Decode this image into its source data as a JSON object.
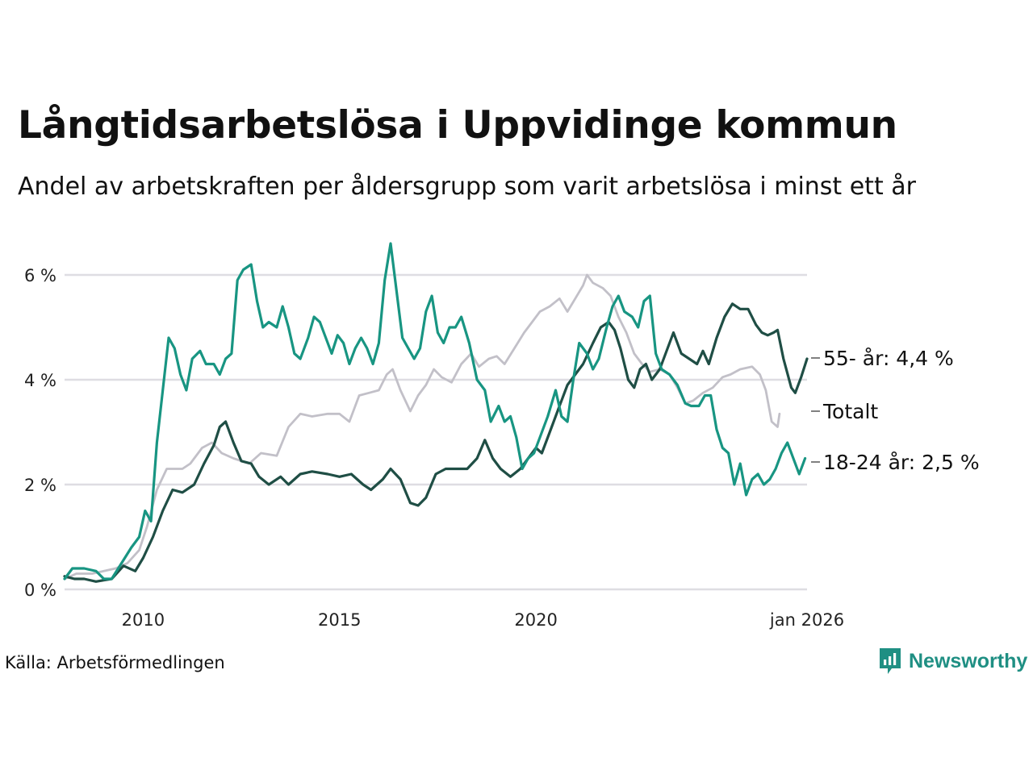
{
  "title": "Långtidsarbetslösa i Uppvidinge kommun",
  "subtitle": "Andel av arbetskraften per åldersgrupp som varit arbetslösa i minst ett år",
  "source": "Källa: Arbetsförmedlingen",
  "brand": {
    "name": "Newsworthy",
    "icon": "newsworthy-logo-icon",
    "color": "#1f8f83"
  },
  "chart_data": {
    "type": "line",
    "title": "Långtidsarbetslösa i Uppvidinge kommun",
    "xlabel": "",
    "ylabel": "",
    "x_unit": "year",
    "xlim": [
      2008.0,
      2026.0
    ],
    "ylim": [
      0,
      6.8
    ],
    "grid": true,
    "y_ticks": [
      {
        "value": 0,
        "label": "0 %"
      },
      {
        "value": 2,
        "label": "2 %"
      },
      {
        "value": 4,
        "label": "4 %"
      },
      {
        "value": 6,
        "label": "6 %"
      }
    ],
    "x_ticks": [
      {
        "value": 2010,
        "label": "2010"
      },
      {
        "value": 2015,
        "label": "2015"
      },
      {
        "value": 2020,
        "label": "2020"
      },
      {
        "value": 2026,
        "label": "jan 2026"
      }
    ],
    "series": [
      {
        "name": "Totalt",
        "end_label": "Totalt",
        "color": "#c2c0c8",
        "points": [
          [
            2008.0,
            0.2
          ],
          [
            2008.3,
            0.3
          ],
          [
            2008.7,
            0.3
          ],
          [
            2009.0,
            0.35
          ],
          [
            2009.3,
            0.4
          ],
          [
            2009.6,
            0.5
          ],
          [
            2009.9,
            0.75
          ],
          [
            2010.1,
            1.2
          ],
          [
            2010.35,
            1.9
          ],
          [
            2010.6,
            2.3
          ],
          [
            2011.0,
            2.3
          ],
          [
            2011.2,
            2.4
          ],
          [
            2011.5,
            2.7
          ],
          [
            2011.75,
            2.8
          ],
          [
            2012.0,
            2.6
          ],
          [
            2012.3,
            2.5
          ],
          [
            2012.7,
            2.4
          ],
          [
            2013.0,
            2.6
          ],
          [
            2013.4,
            2.55
          ],
          [
            2013.7,
            3.1
          ],
          [
            2014.0,
            3.35
          ],
          [
            2014.3,
            3.3
          ],
          [
            2014.7,
            3.35
          ],
          [
            2015.0,
            3.35
          ],
          [
            2015.25,
            3.2
          ],
          [
            2015.5,
            3.7
          ],
          [
            2015.75,
            3.75
          ],
          [
            2016.0,
            3.8
          ],
          [
            2016.2,
            4.1
          ],
          [
            2016.35,
            4.2
          ],
          [
            2016.55,
            3.8
          ],
          [
            2016.8,
            3.4
          ],
          [
            2017.0,
            3.7
          ],
          [
            2017.2,
            3.9
          ],
          [
            2017.4,
            4.2
          ],
          [
            2017.6,
            4.05
          ],
          [
            2017.85,
            3.95
          ],
          [
            2018.1,
            4.3
          ],
          [
            2018.35,
            4.5
          ],
          [
            2018.55,
            4.25
          ],
          [
            2018.8,
            4.4
          ],
          [
            2019.0,
            4.45
          ],
          [
            2019.2,
            4.3
          ],
          [
            2019.45,
            4.6
          ],
          [
            2019.7,
            4.9
          ],
          [
            2019.9,
            5.1
          ],
          [
            2020.1,
            5.3
          ],
          [
            2020.35,
            5.4
          ],
          [
            2020.6,
            5.55
          ],
          [
            2020.8,
            5.3
          ],
          [
            2021.0,
            5.55
          ],
          [
            2021.2,
            5.8
          ],
          [
            2021.3,
            6.0
          ],
          [
            2021.45,
            5.85
          ],
          [
            2021.7,
            5.75
          ],
          [
            2021.9,
            5.6
          ],
          [
            2022.1,
            5.2
          ],
          [
            2022.3,
            4.9
          ],
          [
            2022.5,
            4.5
          ],
          [
            2022.7,
            4.3
          ],
          [
            2022.9,
            4.15
          ],
          [
            2023.15,
            4.2
          ],
          [
            2023.4,
            4.1
          ],
          [
            2023.6,
            3.85
          ],
          [
            2023.8,
            3.55
          ],
          [
            2024.0,
            3.6
          ],
          [
            2024.25,
            3.75
          ],
          [
            2024.5,
            3.85
          ],
          [
            2024.75,
            4.05
          ],
          [
            2024.95,
            4.1
          ],
          [
            2025.2,
            4.2
          ],
          [
            2025.5,
            4.25
          ],
          [
            2025.7,
            4.1
          ],
          [
            2025.85,
            3.8
          ],
          [
            2026.0,
            3.2
          ],
          [
            2026.15,
            3.1
          ],
          [
            2026.2,
            3.35
          ]
        ]
      },
      {
        "name": "55- år",
        "end_label": "55- år: 4,4 %",
        "color": "#1f4e45",
        "points": [
          [
            2008.0,
            0.25
          ],
          [
            2008.25,
            0.2
          ],
          [
            2008.5,
            0.2
          ],
          [
            2008.8,
            0.15
          ],
          [
            2009.2,
            0.2
          ],
          [
            2009.5,
            0.45
          ],
          [
            2009.8,
            0.35
          ],
          [
            2010.0,
            0.6
          ],
          [
            2010.25,
            1.0
          ],
          [
            2010.5,
            1.5
          ],
          [
            2010.75,
            1.9
          ],
          [
            2011.0,
            1.85
          ],
          [
            2011.3,
            2.0
          ],
          [
            2011.55,
            2.4
          ],
          [
            2011.8,
            2.75
          ],
          [
            2011.95,
            3.1
          ],
          [
            2012.1,
            3.2
          ],
          [
            2012.3,
            2.8
          ],
          [
            2012.5,
            2.45
          ],
          [
            2012.75,
            2.4
          ],
          [
            2012.95,
            2.15
          ],
          [
            2013.2,
            2.0
          ],
          [
            2013.5,
            2.15
          ],
          [
            2013.7,
            2.0
          ],
          [
            2014.0,
            2.2
          ],
          [
            2014.3,
            2.25
          ],
          [
            2014.7,
            2.2
          ],
          [
            2015.0,
            2.15
          ],
          [
            2015.3,
            2.2
          ],
          [
            2015.6,
            2.0
          ],
          [
            2015.8,
            1.9
          ],
          [
            2016.1,
            2.1
          ],
          [
            2016.3,
            2.3
          ],
          [
            2016.55,
            2.1
          ],
          [
            2016.8,
            1.65
          ],
          [
            2017.0,
            1.6
          ],
          [
            2017.2,
            1.75
          ],
          [
            2017.45,
            2.2
          ],
          [
            2017.7,
            2.3
          ],
          [
            2018.0,
            2.3
          ],
          [
            2018.25,
            2.3
          ],
          [
            2018.5,
            2.5
          ],
          [
            2018.7,
            2.85
          ],
          [
            2018.9,
            2.5
          ],
          [
            2019.1,
            2.3
          ],
          [
            2019.35,
            2.15
          ],
          [
            2019.6,
            2.3
          ],
          [
            2019.85,
            2.55
          ],
          [
            2020.0,
            2.7
          ],
          [
            2020.15,
            2.6
          ],
          [
            2020.35,
            3.0
          ],
          [
            2020.6,
            3.5
          ],
          [
            2020.8,
            3.9
          ],
          [
            2021.0,
            4.1
          ],
          [
            2021.2,
            4.3
          ],
          [
            2021.45,
            4.7
          ],
          [
            2021.65,
            5.0
          ],
          [
            2021.85,
            5.1
          ],
          [
            2022.0,
            4.95
          ],
          [
            2022.15,
            4.6
          ],
          [
            2022.35,
            4.0
          ],
          [
            2022.5,
            3.85
          ],
          [
            2022.65,
            4.2
          ],
          [
            2022.8,
            4.3
          ],
          [
            2022.95,
            4.0
          ],
          [
            2023.15,
            4.2
          ],
          [
            2023.35,
            4.6
          ],
          [
            2023.5,
            4.9
          ],
          [
            2023.7,
            4.5
          ],
          [
            2023.9,
            4.4
          ],
          [
            2024.1,
            4.3
          ],
          [
            2024.25,
            4.55
          ],
          [
            2024.4,
            4.3
          ],
          [
            2024.6,
            4.8
          ],
          [
            2024.8,
            5.2
          ],
          [
            2025.0,
            5.45
          ],
          [
            2025.2,
            5.35
          ],
          [
            2025.4,
            5.35
          ],
          [
            2025.6,
            5.05
          ],
          [
            2025.75,
            4.9
          ],
          [
            2025.9,
            4.85
          ],
          [
            2026.05,
            4.9
          ],
          [
            2026.15,
            4.95
          ],
          [
            2026.3,
            4.4
          ],
          [
            2026.5,
            3.85
          ],
          [
            2026.6,
            3.75
          ],
          [
            2026.75,
            4.05
          ],
          [
            2026.9,
            4.4
          ]
        ]
      },
      {
        "name": "18-24 år",
        "end_label": "18-24 år: 2,5 %",
        "color": "#189582",
        "points": [
          [
            2008.0,
            0.2
          ],
          [
            2008.2,
            0.4
          ],
          [
            2008.5,
            0.4
          ],
          [
            2008.8,
            0.35
          ],
          [
            2009.0,
            0.2
          ],
          [
            2009.2,
            0.2
          ],
          [
            2009.45,
            0.5
          ],
          [
            2009.7,
            0.8
          ],
          [
            2009.9,
            1.0
          ],
          [
            2010.05,
            1.5
          ],
          [
            2010.2,
            1.3
          ],
          [
            2010.35,
            2.8
          ],
          [
            2010.5,
            3.8
          ],
          [
            2010.65,
            4.8
          ],
          [
            2010.8,
            4.6
          ],
          [
            2010.95,
            4.1
          ],
          [
            2011.1,
            3.8
          ],
          [
            2011.25,
            4.4
          ],
          [
            2011.45,
            4.55
          ],
          [
            2011.6,
            4.3
          ],
          [
            2011.8,
            4.3
          ],
          [
            2011.95,
            4.1
          ],
          [
            2012.1,
            4.4
          ],
          [
            2012.25,
            4.5
          ],
          [
            2012.4,
            5.9
          ],
          [
            2012.55,
            6.1
          ],
          [
            2012.75,
            6.2
          ],
          [
            2012.9,
            5.5
          ],
          [
            2013.05,
            5.0
          ],
          [
            2013.2,
            5.1
          ],
          [
            2013.4,
            5.0
          ],
          [
            2013.55,
            5.4
          ],
          [
            2013.7,
            5.0
          ],
          [
            2013.85,
            4.5
          ],
          [
            2014.0,
            4.4
          ],
          [
            2014.2,
            4.8
          ],
          [
            2014.35,
            5.2
          ],
          [
            2014.5,
            5.1
          ],
          [
            2014.65,
            4.8
          ],
          [
            2014.8,
            4.5
          ],
          [
            2014.95,
            4.85
          ],
          [
            2015.1,
            4.7
          ],
          [
            2015.25,
            4.3
          ],
          [
            2015.4,
            4.6
          ],
          [
            2015.55,
            4.8
          ],
          [
            2015.7,
            4.6
          ],
          [
            2015.85,
            4.3
          ],
          [
            2016.0,
            4.7
          ],
          [
            2016.15,
            5.9
          ],
          [
            2016.3,
            6.6
          ],
          [
            2016.45,
            5.7
          ],
          [
            2016.6,
            4.8
          ],
          [
            2016.75,
            4.6
          ],
          [
            2016.9,
            4.4
          ],
          [
            2017.05,
            4.6
          ],
          [
            2017.2,
            5.3
          ],
          [
            2017.35,
            5.6
          ],
          [
            2017.5,
            4.9
          ],
          [
            2017.65,
            4.7
          ],
          [
            2017.8,
            5.0
          ],
          [
            2017.95,
            5.0
          ],
          [
            2018.1,
            5.2
          ],
          [
            2018.3,
            4.7
          ],
          [
            2018.5,
            4.0
          ],
          [
            2018.7,
            3.8
          ],
          [
            2018.85,
            3.2
          ],
          [
            2019.05,
            3.5
          ],
          [
            2019.2,
            3.2
          ],
          [
            2019.35,
            3.3
          ],
          [
            2019.5,
            2.9
          ],
          [
            2019.65,
            2.3
          ],
          [
            2019.8,
            2.5
          ],
          [
            2019.95,
            2.6
          ],
          [
            2020.1,
            2.9
          ],
          [
            2020.3,
            3.3
          ],
          [
            2020.5,
            3.8
          ],
          [
            2020.65,
            3.3
          ],
          [
            2020.8,
            3.2
          ],
          [
            2020.95,
            4.0
          ],
          [
            2021.1,
            4.7
          ],
          [
            2021.3,
            4.5
          ],
          [
            2021.45,
            4.2
          ],
          [
            2021.6,
            4.4
          ],
          [
            2021.8,
            5.0
          ],
          [
            2021.95,
            5.4
          ],
          [
            2022.1,
            5.6
          ],
          [
            2022.25,
            5.3
          ],
          [
            2022.45,
            5.2
          ],
          [
            2022.6,
            5.0
          ],
          [
            2022.75,
            5.5
          ],
          [
            2022.9,
            5.6
          ],
          [
            2023.05,
            4.5
          ],
          [
            2023.2,
            4.2
          ],
          [
            2023.4,
            4.1
          ],
          [
            2023.6,
            3.9
          ],
          [
            2023.8,
            3.55
          ],
          [
            2023.95,
            3.5
          ],
          [
            2024.15,
            3.5
          ],
          [
            2024.3,
            3.7
          ],
          [
            2024.45,
            3.7
          ],
          [
            2024.6,
            3.05
          ],
          [
            2024.75,
            2.7
          ],
          [
            2024.9,
            2.6
          ],
          [
            2025.05,
            2.0
          ],
          [
            2025.2,
            2.4
          ],
          [
            2025.35,
            1.8
          ],
          [
            2025.5,
            2.1
          ],
          [
            2025.65,
            2.2
          ],
          [
            2025.8,
            2.0
          ],
          [
            2025.95,
            2.1
          ],
          [
            2026.1,
            2.3
          ],
          [
            2026.25,
            2.6
          ],
          [
            2026.4,
            2.8
          ],
          [
            2026.55,
            2.5
          ],
          [
            2026.7,
            2.2
          ],
          [
            2026.85,
            2.5
          ]
        ]
      }
    ]
  }
}
